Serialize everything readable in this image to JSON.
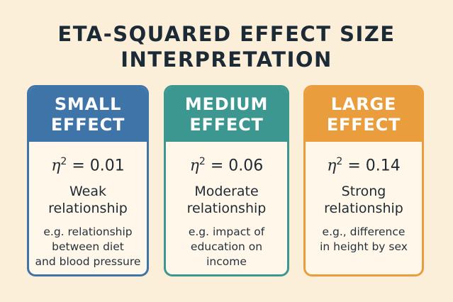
{
  "title": {
    "line1": "ETA-SQUARED EFFECT SIZE",
    "line2": "INTERPRETATION"
  },
  "cards": [
    {
      "heading1": "SMALL",
      "heading2": "EFFECT",
      "symbol": "η",
      "exponent": "2",
      "value": "= 0.01",
      "relation1": "Weak",
      "relation2": "relationship",
      "example": [
        "e.g. relationship",
        "between diet",
        "and blood pressure"
      ],
      "color": "#3f74a8"
    },
    {
      "heading1": "MEDIUM",
      "heading2": "EFFECT",
      "symbol": "η",
      "exponent": "2",
      "value": "= 0.06",
      "relation1": "Moderate",
      "relation2": "relationship",
      "example": [
        "e.g. impact of",
        "education on",
        "income"
      ],
      "color": "#3b978f"
    },
    {
      "heading1": "LARGE",
      "heading2": "EFFECT",
      "symbol": "η",
      "exponent": "2",
      "value": "= 0.14",
      "relation1": "Strong",
      "relation2": "relationship",
      "example": [
        "e.g., difference",
        "in height by sex"
      ],
      "color": "#ea9d3d"
    }
  ]
}
